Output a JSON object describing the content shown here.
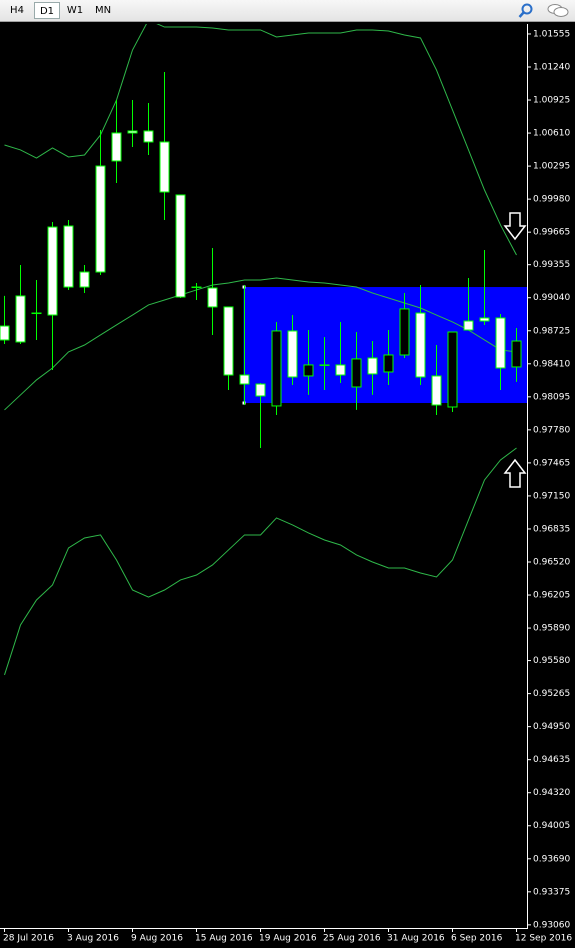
{
  "toolbar": {
    "tabs": [
      "H4",
      "D1",
      "W1",
      "MN"
    ],
    "active": 1
  },
  "chart_data": {
    "type": "candlestick",
    "categories": [
      "28 Jul 2016",
      null,
      null,
      null,
      "3 Aug 2016",
      null,
      null,
      null,
      "9 Aug 2016",
      null,
      null,
      null,
      "15 Aug 2016",
      null,
      null,
      null,
      "19 Aug 2016",
      null,
      null,
      null,
      "25 Aug 2016",
      null,
      null,
      null,
      "31 Aug 2016",
      null,
      null,
      null,
      "6 Sep 2016",
      null,
      null,
      null,
      "12 Sep 2016"
    ],
    "open": [
      0.9877,
      0.99057,
      0.98894,
      0.99714,
      0.99724,
      0.99285,
      1.00296,
      1.00611,
      1.0063,
      1.0063,
      1.00525,
      1.0002,
      0.99142,
      0.99133,
      0.98952,
      0.98303,
      0.98217,
      0.98008,
      0.98723,
      0.98294,
      0.98399,
      0.98399,
      0.98189,
      0.98465,
      0.98332,
      0.98494,
      0.98894,
      0.98294,
      0.97998,
      0.98818,
      0.98847,
      0.98847,
      0.9838
    ],
    "high": [
      0.99057,
      0.99352,
      0.99209,
      0.99762,
      0.99781,
      0.99352,
      1.00639,
      1.00925,
      1.00925,
      1.00897,
      1.01192,
      1.0002,
      0.9918,
      0.99514,
      0.98952,
      0.99161,
      0.98227,
      0.98809,
      0.98875,
      0.98732,
      0.98666,
      0.98809,
      0.98713,
      0.98627,
      0.98732,
      0.99085,
      0.99161,
      0.98589,
      0.98713,
      0.99228,
      0.99495,
      0.98885,
      0.98751
    ],
    "low": [
      0.98599,
      0.98599,
      0.98637,
      0.98351,
      0.99114,
      0.99085,
      0.99257,
      1.00134,
      1.00477,
      1.00401,
      0.99781,
      0.99037,
      0.99018,
      0.98685,
      0.9816,
      0.98017,
      0.97607,
      0.97922,
      0.98208,
      0.98113,
      0.9816,
      0.98227,
      0.9797,
      0.98113,
      0.98208,
      0.98465,
      0.98208,
      0.97922,
      0.9795,
      0.98732,
      0.9878,
      0.9816,
      0.98237
    ],
    "close": [
      0.98637,
      0.98618,
      0.98894,
      0.98875,
      0.99142,
      0.99142,
      0.99285,
      1.00344,
      1.00611,
      1.00525,
      1.00048,
      0.99047,
      0.99142,
      0.98952,
      0.98303,
      0.98217,
      0.98103,
      0.98723,
      0.98284,
      0.98399,
      0.98399,
      0.98303,
      0.98456,
      0.98313,
      0.98494,
      0.98933,
      0.98284,
      0.98017,
      0.98713,
      0.98732,
      0.98818,
      0.9837,
      0.98627
    ],
    "bands": {
      "color": "#2fb84a",
      "upper": [
        1.00496,
        1.00449,
        1.00372,
        1.00468,
        1.00382,
        1.00401,
        1.00592,
        1.00925,
        1.01402,
        1.01688,
        1.01621,
        1.01621,
        1.01621,
        1.01612,
        1.01593,
        1.01593,
        1.01593,
        1.01526,
        1.01545,
        1.01564,
        1.01564,
        1.01564,
        1.01593,
        1.01593,
        1.01583,
        1.01545,
        1.01517,
        1.01211,
        1.0083,
        1.00449,
        1.00067,
        0.99734,
        0.99447
      ],
      "middle": [
        0.9797,
        0.98113,
        0.98256,
        0.9837,
        0.98523,
        0.98589,
        0.98685,
        0.9878,
        0.98875,
        0.98971,
        0.99018,
        0.99066,
        0.99114,
        0.99161,
        0.9918,
        0.99209,
        0.99209,
        0.99228,
        0.99209,
        0.9919,
        0.9918,
        0.99161,
        0.99142,
        0.99085,
        0.99037,
        0.9899,
        0.98942,
        0.98875,
        0.98809,
        0.98732,
        0.98637,
        0.98542,
        0.98523
      ],
      "lower": [
        0.95443,
        0.95919,
        0.96158,
        0.96301,
        0.96654,
        0.96749,
        0.96778,
        0.96539,
        0.96253,
        0.96186,
        0.96253,
        0.96349,
        0.96396,
        0.96492,
        0.96635,
        0.96778,
        0.96778,
        0.9694,
        0.96873,
        0.96797,
        0.9673,
        0.96682,
        0.96587,
        0.9652,
        0.96463,
        0.96463,
        0.96415,
        0.96377,
        0.96539,
        0.96921,
        0.97302,
        0.97493,
        0.97607
      ]
    },
    "zone": {
      "ylim": [
        0.98036,
        0.99142
      ],
      "color": "#0000ff"
    },
    "candle_color": "#00ff00",
    "bull_fill": "#000000",
    "bear_fill": "#ffffff",
    "ylim": [
      0.9303,
      1.0165
    ],
    "yticks": [
      1.01555,
      {
        "value": 1.0124,
        "label": "1.01240"
      },
      1.00925,
      {
        "value": 1.0061,
        "label": "1.00610"
      },
      1.00295,
      {
        "value": 0.9998,
        "label": "0.99980"
      },
      0.99665,
      0.99355,
      {
        "value": 0.9904,
        "label": "0.99040"
      },
      0.98725,
      {
        "value": 0.9841,
        "label": "0.98410"
      },
      0.98095,
      {
        "value": 0.9778,
        "label": "0.97780"
      },
      0.97465,
      {
        "value": 0.9715,
        "label": "0.97150"
      },
      0.96835,
      {
        "value": 0.9652,
        "label": "0.96520"
      },
      0.96205,
      {
        "value": 0.9589,
        "label": "0.95890"
      },
      {
        "value": 0.9558,
        "label": "0.95580"
      },
      0.95265,
      {
        "value": 0.9495,
        "label": "0.94950"
      },
      0.94635,
      {
        "value": 0.9432,
        "label": "0.94320"
      },
      0.94005,
      {
        "value": 0.9369,
        "label": "0.93690"
      },
      0.93375,
      {
        "value": 0.9306,
        "label": "0.93060"
      }
    ]
  }
}
